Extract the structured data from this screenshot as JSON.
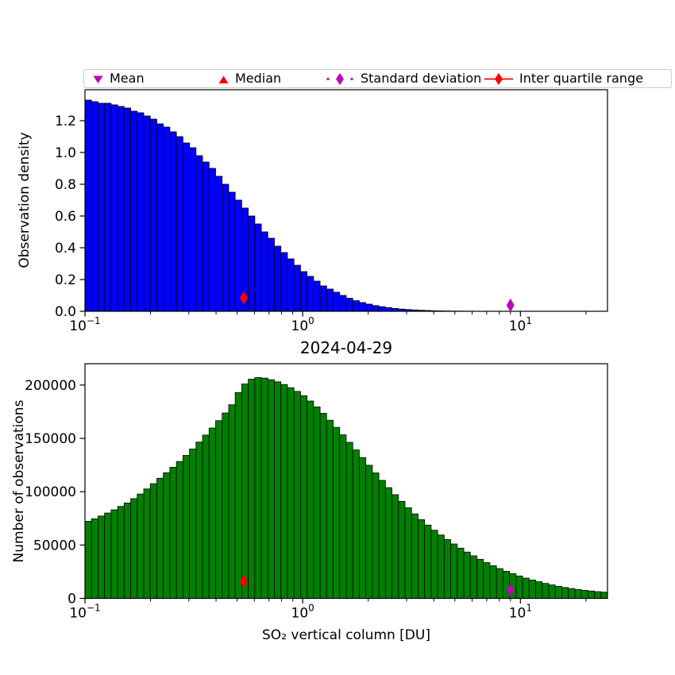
{
  "figure": {
    "background": "#ffffff",
    "title_between_plots": "2024-04-29"
  },
  "legend": {
    "items": [
      {
        "label": "Mean",
        "marker": "triangle-down-icon",
        "color": "#bf00bf",
        "line": "none"
      },
      {
        "label": "Median",
        "marker": "triangle-up-icon",
        "color": "#ff0000",
        "line": "none"
      },
      {
        "label": "Standard deviation",
        "marker": "thin-diamond-icon",
        "color": "#bf00bf",
        "line": "dashdot"
      },
      {
        "label": "Inter quartile range",
        "marker": "thin-diamond-icon",
        "color": "#ff0000",
        "line": "solid"
      }
    ]
  },
  "chart_data": [
    {
      "id": "top",
      "type": "bar",
      "subtype": "log-binned histogram",
      "ylabel": "Observation density",
      "xlabel": "",
      "xscale": "log10",
      "xlim": [
        0.1,
        25.1
      ],
      "ylim": [
        0,
        1.395
      ],
      "bar_color": "#0000ff",
      "bar_edge_color": "#000000",
      "bins": {
        "log10_start": -1.0,
        "log10_end": 1.4,
        "count": 80
      },
      "yticks": {
        "values": [
          0.0,
          0.2,
          0.4,
          0.6,
          0.8,
          1.0,
          1.2
        ],
        "decimals": 1
      },
      "xticks": [
        {
          "lx": -1,
          "base": "10",
          "exp": "−1"
        },
        {
          "lx": 0,
          "base": "10",
          "exp": "0"
        },
        {
          "lx": 1,
          "base": "10",
          "exp": "1"
        }
      ],
      "values": [
        1.33,
        1.32,
        1.31,
        1.31,
        1.3,
        1.29,
        1.28,
        1.26,
        1.25,
        1.23,
        1.21,
        1.18,
        1.16,
        1.13,
        1.1,
        1.06,
        1.03,
        0.98,
        0.94,
        0.9,
        0.85,
        0.8,
        0.75,
        0.7,
        0.65,
        0.6,
        0.55,
        0.5,
        0.46,
        0.41,
        0.37,
        0.33,
        0.29,
        0.25,
        0.22,
        0.19,
        0.16,
        0.14,
        0.12,
        0.1,
        0.082,
        0.067,
        0.055,
        0.045,
        0.036,
        0.029,
        0.023,
        0.018,
        0.014,
        0.011,
        0.0085,
        0.0065,
        0.005,
        0.0037,
        0.0027,
        0.002,
        0.0015,
        0.0011,
        0.0008,
        0.0006,
        0.0005,
        0.0004,
        0.0003,
        0.0002,
        0.00015,
        0.0001,
        0,
        0,
        0,
        0,
        0,
        0,
        0,
        0,
        0,
        0,
        0,
        0,
        0,
        0
      ],
      "markers": [
        {
          "name": "iqr-median-marker",
          "shape": "thin-diamond",
          "color": "#ff0000",
          "x": 0.536,
          "y": 0.085
        },
        {
          "name": "std-dev-marker",
          "shape": "thin-diamond",
          "color": "#bf00bf",
          "x": 9.0,
          "y": 0.038
        }
      ]
    },
    {
      "id": "bottom",
      "type": "bar",
      "subtype": "log-binned histogram",
      "title": "2024-04-29",
      "ylabel": "Number of observations",
      "xlabel": "SO₂ vertical column [DU]",
      "xscale": "log10",
      "xlim": [
        0.1,
        25.1
      ],
      "ylim": [
        0,
        220000
      ],
      "bar_color": "#008000",
      "bar_edge_color": "#000000",
      "bins": {
        "log10_start": -1.0,
        "log10_end": 1.4,
        "count": 80
      },
      "yticks": {
        "values": [
          0,
          50000,
          100000,
          150000,
          200000
        ],
        "decimals": 0
      },
      "xticks": [
        {
          "lx": -1,
          "base": "10",
          "exp": "−1"
        },
        {
          "lx": 0,
          "base": "10",
          "exp": "0"
        },
        {
          "lx": 1,
          "base": "10",
          "exp": "1"
        }
      ],
      "values": [
        72200,
        74600,
        77200,
        80000,
        83000,
        86200,
        89400,
        93500,
        97800,
        102600,
        107500,
        112600,
        117800,
        122900,
        128300,
        134000,
        140000,
        146500,
        153100,
        159700,
        166600,
        173800,
        181500,
        193000,
        201000,
        205500,
        207000,
        206500,
        205000,
        203000,
        200500,
        197500,
        194000,
        190000,
        185000,
        179500,
        173500,
        167000,
        160300,
        153300,
        146300,
        139200,
        132000,
        124800,
        117600,
        110600,
        103800,
        97200,
        90900,
        84900,
        79200,
        73800,
        68700,
        63900,
        59400,
        55100,
        51000,
        47100,
        43400,
        39900,
        36600,
        33500,
        30600,
        27900,
        25400,
        23100,
        21000,
        19000,
        17200,
        15600,
        14000,
        12600,
        11300,
        10200,
        9200,
        8300,
        7500,
        6900,
        6300,
        5800
      ],
      "markers": [
        {
          "name": "iqr-median-marker",
          "shape": "thin-diamond",
          "color": "#ff0000",
          "x": 0.536,
          "y": 16000
        },
        {
          "name": "std-dev-marker",
          "shape": "thin-diamond",
          "color": "#bf00bf",
          "x": 9.0,
          "y": 7800
        }
      ]
    }
  ]
}
